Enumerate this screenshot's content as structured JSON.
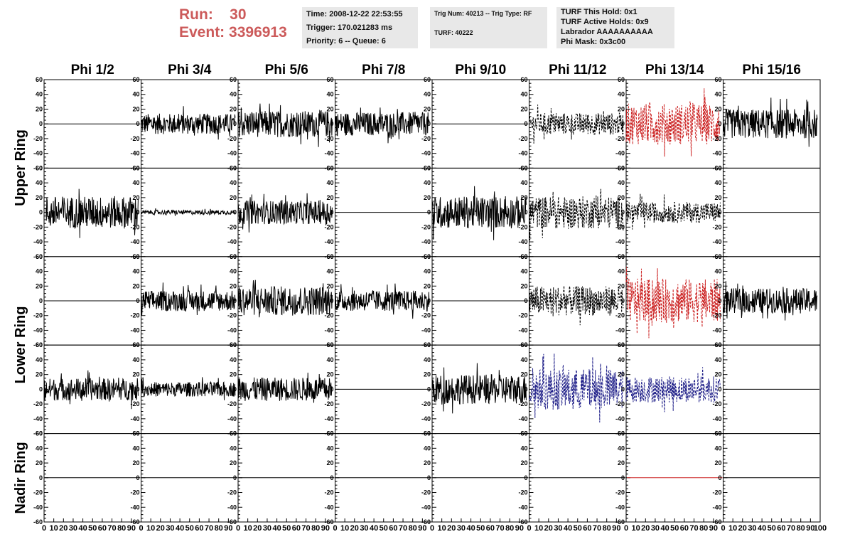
{
  "header": {
    "run_label": "Run:",
    "run_value": "30",
    "event_label": "Event:",
    "event_value": "3396913",
    "time": "Time: 2008-12-22 22:53:55",
    "trigger": "Trigger: 170.021283 ms",
    "priority": "Priority: 6 -- Queue: 6",
    "trig_num": "Trig Num: 40213 -- Trig Type: RF",
    "turf": "TURF: 40222",
    "turf_hold": "TURF This Hold: 0x1",
    "turf_active": "TURF Active Holds: 0x9",
    "labrador": "Labrador AAAAAAAAAA",
    "phi_mask": "Phi Mask: 0x3c00"
  },
  "columns": [
    "Phi 1/2",
    "Phi 3/4",
    "Phi 5/6",
    "Phi 7/8",
    "Phi 9/10",
    "Phi 11/12",
    "Phi 13/14",
    "Phi 15/16"
  ],
  "rings": [
    "Upper Ring",
    "Lower Ring",
    "Nadir Ring"
  ],
  "colors": {
    "red_accent": "#cc5a5a",
    "trace_black": "#000000",
    "trace_red": "#cc2222",
    "trace_blue": "#22228a",
    "info_bg": "#e8e8e8"
  },
  "chart_data": {
    "type": "line",
    "title": "",
    "xlim": [
      0,
      100
    ],
    "ylim": [
      -60,
      60
    ],
    "y_ticks": [
      "60",
      "40",
      "20",
      "0",
      "-20",
      "-40",
      "-60"
    ],
    "x_ticks": [
      "0",
      "10",
      "20",
      "30",
      "40",
      "50",
      "60",
      "70",
      "80",
      "90",
      "100"
    ],
    "row_labels": [
      "Upper Ring",
      "Upper Ring",
      "Lower Ring",
      "Lower Ring",
      "Nadir Ring"
    ],
    "panels": [
      [
        {
          "style": "flat",
          "color": "black"
        },
        {
          "style": "noise",
          "amp": 14,
          "color": "black"
        },
        {
          "style": "noise",
          "amp": 18,
          "color": "black"
        },
        {
          "style": "noise",
          "amp": 16,
          "color": "black"
        },
        {
          "style": "flat",
          "color": "black"
        },
        {
          "style": "dashed",
          "amp": 15,
          "color": "black"
        },
        {
          "style": "dashed",
          "amp": 28,
          "color": "red"
        },
        {
          "style": "noise",
          "amp": 20,
          "color": "black"
        }
      ],
      [
        {
          "style": "noise",
          "amp": 22,
          "color": "black"
        },
        {
          "style": "noise",
          "amp": 3,
          "color": "black"
        },
        {
          "style": "noise",
          "amp": 16,
          "color": "black"
        },
        {
          "style": "flat",
          "color": "black"
        },
        {
          "style": "noise",
          "amp": 22,
          "color": "black"
        },
        {
          "style": "dashed",
          "amp": 22,
          "color": "black"
        },
        {
          "style": "dashed",
          "amp": 14,
          "color": "black"
        },
        {
          "style": "flat",
          "color": "black"
        }
      ],
      [
        {
          "style": "flat",
          "color": "black"
        },
        {
          "style": "noise",
          "amp": 14,
          "color": "black"
        },
        {
          "style": "noise",
          "amp": 20,
          "color": "black"
        },
        {
          "style": "noise",
          "amp": 14,
          "color": "black"
        },
        {
          "style": "flat",
          "color": "black"
        },
        {
          "style": "dashed",
          "amp": 20,
          "color": "black"
        },
        {
          "style": "dashed",
          "amp": 30,
          "color": "red"
        },
        {
          "style": "noise",
          "amp": 17,
          "color": "black"
        }
      ],
      [
        {
          "style": "noise",
          "amp": 15,
          "color": "black"
        },
        {
          "style": "noise",
          "amp": 10,
          "color": "black"
        },
        {
          "style": "noise",
          "amp": 16,
          "color": "black"
        },
        {
          "style": "flat",
          "color": "black"
        },
        {
          "style": "noise",
          "amp": 20,
          "color": "black"
        },
        {
          "style": "dashed",
          "amp": 28,
          "color": "blue"
        },
        {
          "style": "dashed",
          "amp": 18,
          "color": "blue"
        },
        {
          "style": "flat",
          "color": "black"
        }
      ],
      [
        {
          "style": "flat",
          "color": "black"
        },
        {
          "style": "flat",
          "color": "black"
        },
        {
          "style": "flat",
          "color": "black"
        },
        {
          "style": "flat",
          "color": "black"
        },
        {
          "style": "flat",
          "color": "black"
        },
        {
          "style": "flat",
          "color": "black"
        },
        {
          "style": "flat",
          "color": "red"
        },
        {
          "style": "flat",
          "color": "black"
        }
      ]
    ]
  }
}
